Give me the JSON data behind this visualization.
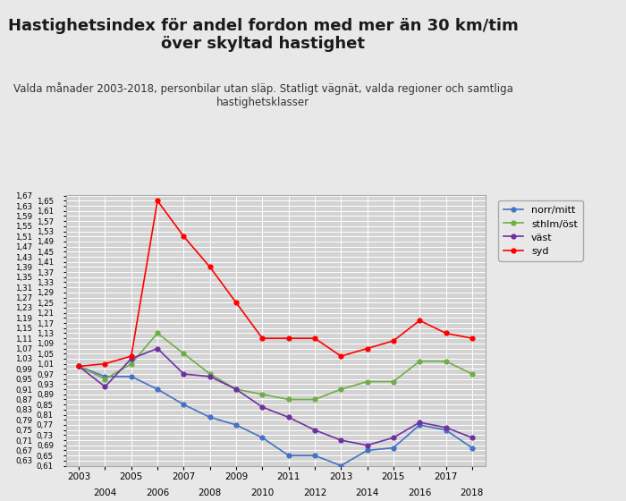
{
  "title": "Hastighetsindex för andel fordon med mer än 30 km/tim\növer skyltad hastighet",
  "subtitle": "Valda månader 2003-2018, personbilar utan släp. Statligt vägnät, valda regioner och samtliga\nhastighetsklasser",
  "years": [
    2003,
    2004,
    2005,
    2006,
    2007,
    2008,
    2009,
    2010,
    2011,
    2012,
    2013,
    2014,
    2015,
    2016,
    2017,
    2018
  ],
  "norr_mitt": [
    1.0,
    0.96,
    0.96,
    0.91,
    0.85,
    0.8,
    0.77,
    0.72,
    0.65,
    0.65,
    0.61,
    0.67,
    0.68,
    0.77,
    0.75,
    0.68
  ],
  "sthlm_ost": [
    1.0,
    0.95,
    1.01,
    1.13,
    1.05,
    0.97,
    0.91,
    0.89,
    0.87,
    0.87,
    0.91,
    0.94,
    0.94,
    1.02,
    1.02,
    0.97
  ],
  "vast": [
    1.0,
    0.92,
    1.03,
    1.07,
    0.97,
    0.96,
    0.91,
    0.84,
    0.8,
    0.75,
    0.71,
    0.69,
    0.72,
    0.78,
    0.76,
    0.72
  ],
  "syd": [
    1.0,
    1.01,
    1.04,
    1.65,
    1.51,
    1.39,
    1.25,
    1.11,
    1.11,
    1.11,
    1.04,
    1.07,
    1.1,
    1.18,
    1.13,
    1.11
  ],
  "norr_mitt_color": "#4472c4",
  "sthlm_ost_color": "#70ad47",
  "vast_color": "#7030a0",
  "syd_color": "#ff0000",
  "ylim_min": 0.61,
  "ylim_max": 1.67,
  "ytick_step": 0.02,
  "background_color": "#e8e8e8",
  "plot_bg_color": "#d3d3d3",
  "grid_color": "#ffffff",
  "title_fontsize": 13,
  "subtitle_fontsize": 8.5
}
